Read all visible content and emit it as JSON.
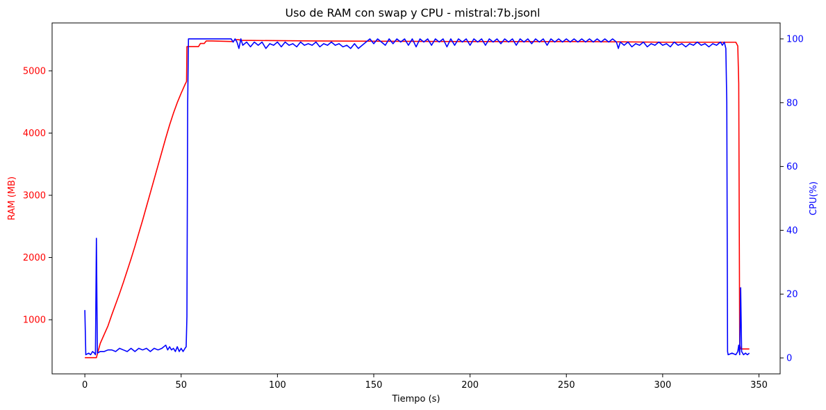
{
  "chart_data": {
    "type": "line",
    "title": "Uso de RAM con swap y CPU - mistral:7b.jsonl",
    "xlabel": "Tiempo (s)",
    "ylabel": "RAM (MB)",
    "y2label": "CPU(%)",
    "xlim": [
      -17,
      361
    ],
    "ylim": [
      130,
      5770
    ],
    "y2lim": [
      -5,
      105
    ],
    "x_ticks": [
      0,
      50,
      100,
      150,
      200,
      250,
      300,
      350
    ],
    "y_ticks": [
      1000,
      2000,
      3000,
      4000,
      5000
    ],
    "y2_ticks": [
      0,
      20,
      40,
      60,
      80,
      100
    ],
    "grid": false,
    "series": [
      {
        "name": "RAM (MB)",
        "axis": "left",
        "color": "#ff0000",
        "points": [
          [
            0,
            390
          ],
          [
            6,
            390
          ],
          [
            6.5,
            450
          ],
          [
            8,
            620
          ],
          [
            10,
            760
          ],
          [
            12,
            900
          ],
          [
            14,
            1080
          ],
          [
            16,
            1250
          ],
          [
            18,
            1420
          ],
          [
            20,
            1600
          ],
          [
            22,
            1790
          ],
          [
            24,
            1980
          ],
          [
            26,
            2180
          ],
          [
            28,
            2390
          ],
          [
            30,
            2600
          ],
          [
            32,
            2820
          ],
          [
            34,
            3040
          ],
          [
            36,
            3260
          ],
          [
            38,
            3480
          ],
          [
            40,
            3700
          ],
          [
            42,
            3920
          ],
          [
            44,
            4130
          ],
          [
            46,
            4320
          ],
          [
            48,
            4490
          ],
          [
            50,
            4640
          ],
          [
            52,
            4780
          ],
          [
            52.8,
            4830
          ],
          [
            53,
            5390
          ],
          [
            59,
            5390
          ],
          [
            60,
            5440
          ],
          [
            62,
            5440
          ],
          [
            63,
            5480
          ],
          [
            66,
            5480
          ],
          [
            77,
            5470
          ],
          [
            78,
            5500
          ],
          [
            80,
            5500
          ],
          [
            81,
            5490
          ],
          [
            120,
            5480
          ],
          [
            200,
            5470
          ],
          [
            260,
            5470
          ],
          [
            300,
            5460
          ],
          [
            338,
            5460
          ],
          [
            339,
            5400
          ],
          [
            339.5,
            4800
          ],
          [
            340,
            600
          ],
          [
            340.5,
            530
          ],
          [
            345,
            530
          ]
        ]
      },
      {
        "name": "CPU(%)",
        "axis": "right",
        "color": "#0000ff",
        "points": [
          [
            0,
            15
          ],
          [
            0.5,
            1
          ],
          [
            2,
            1.5
          ],
          [
            3,
            1
          ],
          [
            4,
            2
          ],
          [
            5,
            1.5
          ],
          [
            5.5,
            1
          ],
          [
            6,
            37.5
          ],
          [
            6.5,
            1.5
          ],
          [
            8,
            2
          ],
          [
            10,
            2
          ],
          [
            12,
            2.5
          ],
          [
            14,
            2.5
          ],
          [
            16,
            2
          ],
          [
            18,
            3
          ],
          [
            20,
            2.5
          ],
          [
            22,
            2
          ],
          [
            24,
            3
          ],
          [
            26,
            2
          ],
          [
            28,
            3
          ],
          [
            30,
            2.5
          ],
          [
            32,
            3
          ],
          [
            34,
            2
          ],
          [
            36,
            3
          ],
          [
            38,
            2.5
          ],
          [
            40,
            3
          ],
          [
            42,
            4
          ],
          [
            43,
            2.5
          ],
          [
            44,
            3.5
          ],
          [
            45,
            2.5
          ],
          [
            46,
            3
          ],
          [
            47,
            2
          ],
          [
            48,
            3.5
          ],
          [
            49,
            2
          ],
          [
            50,
            3
          ],
          [
            51,
            2
          ],
          [
            52,
            3
          ],
          [
            52.6,
            3.5
          ],
          [
            53,
            13
          ],
          [
            53.4,
            80
          ],
          [
            53.8,
            100
          ],
          [
            65,
            100
          ],
          [
            76,
            100
          ],
          [
            77,
            99
          ],
          [
            78,
            100
          ],
          [
            79,
            99
          ],
          [
            80,
            97
          ],
          [
            81,
            100
          ],
          [
            82,
            98
          ],
          [
            84,
            99
          ],
          [
            86,
            97.5
          ],
          [
            88,
            99
          ],
          [
            90,
            98
          ],
          [
            92,
            99
          ],
          [
            94,
            97
          ],
          [
            96,
            98.5
          ],
          [
            98,
            98
          ],
          [
            100,
            99
          ],
          [
            102,
            97.5
          ],
          [
            104,
            99
          ],
          [
            106,
            98
          ],
          [
            108,
            98.5
          ],
          [
            110,
            97.5
          ],
          [
            112,
            99
          ],
          [
            114,
            98
          ],
          [
            116,
            98.5
          ],
          [
            118,
            98
          ],
          [
            120,
            99
          ],
          [
            122,
            97.5
          ],
          [
            124,
            98.5
          ],
          [
            126,
            98
          ],
          [
            128,
            99
          ],
          [
            130,
            98
          ],
          [
            132,
            98.5
          ],
          [
            134,
            97.5
          ],
          [
            136,
            98
          ],
          [
            138,
            97
          ],
          [
            140,
            98.5
          ],
          [
            142,
            97
          ],
          [
            144,
            98
          ],
          [
            146,
            99
          ],
          [
            148,
            100
          ],
          [
            150,
            98.5
          ],
          [
            152,
            100
          ],
          [
            154,
            99
          ],
          [
            156,
            98
          ],
          [
            158,
            100
          ],
          [
            160,
            98.5
          ],
          [
            162,
            100
          ],
          [
            164,
            99
          ],
          [
            166,
            100
          ],
          [
            168,
            98
          ],
          [
            170,
            100
          ],
          [
            172,
            97.5
          ],
          [
            174,
            100
          ],
          [
            176,
            99
          ],
          [
            178,
            100
          ],
          [
            180,
            98
          ],
          [
            182,
            100
          ],
          [
            184,
            99
          ],
          [
            186,
            100
          ],
          [
            188,
            97.5
          ],
          [
            190,
            100
          ],
          [
            192,
            98
          ],
          [
            194,
            100
          ],
          [
            196,
            99
          ],
          [
            198,
            100
          ],
          [
            200,
            98
          ],
          [
            202,
            100
          ],
          [
            204,
            99
          ],
          [
            206,
            100
          ],
          [
            208,
            98
          ],
          [
            210,
            100
          ],
          [
            212,
            99
          ],
          [
            214,
            100
          ],
          [
            216,
            98.5
          ],
          [
            218,
            100
          ],
          [
            220,
            99
          ],
          [
            222,
            100
          ],
          [
            224,
            98
          ],
          [
            226,
            100
          ],
          [
            228,
            99
          ],
          [
            230,
            100
          ],
          [
            232,
            98.5
          ],
          [
            234,
            100
          ],
          [
            236,
            99
          ],
          [
            238,
            100
          ],
          [
            240,
            98
          ],
          [
            242,
            100
          ],
          [
            244,
            99
          ],
          [
            246,
            100
          ],
          [
            248,
            99
          ],
          [
            250,
            100
          ],
          [
            252,
            99
          ],
          [
            254,
            100
          ],
          [
            256,
            99
          ],
          [
            258,
            100
          ],
          [
            260,
            99
          ],
          [
            262,
            100
          ],
          [
            264,
            99
          ],
          [
            266,
            100
          ],
          [
            268,
            99
          ],
          [
            270,
            100
          ],
          [
            272,
            99
          ],
          [
            274,
            100
          ],
          [
            276,
            99
          ],
          [
            277,
            97
          ],
          [
            278,
            99
          ],
          [
            280,
            98
          ],
          [
            282,
            99
          ],
          [
            284,
            97.5
          ],
          [
            286,
            98.5
          ],
          [
            288,
            98
          ],
          [
            290,
            99
          ],
          [
            292,
            97.5
          ],
          [
            294,
            98.5
          ],
          [
            296,
            98
          ],
          [
            298,
            99
          ],
          [
            300,
            98
          ],
          [
            302,
            98.5
          ],
          [
            304,
            97.5
          ],
          [
            306,
            99
          ],
          [
            308,
            98
          ],
          [
            310,
            98.5
          ],
          [
            312,
            97.5
          ],
          [
            314,
            98.5
          ],
          [
            316,
            98
          ],
          [
            318,
            99
          ],
          [
            320,
            98
          ],
          [
            322,
            98.5
          ],
          [
            324,
            97.5
          ],
          [
            326,
            98.5
          ],
          [
            328,
            98
          ],
          [
            330,
            99
          ],
          [
            331,
            98
          ],
          [
            332,
            99
          ],
          [
            332.8,
            97
          ],
          [
            333.3,
            80
          ],
          [
            333.7,
            2
          ],
          [
            334,
            1
          ],
          [
            336,
            1.5
          ],
          [
            338,
            1
          ],
          [
            339,
            2
          ],
          [
            339.5,
            4
          ],
          [
            340,
            1
          ],
          [
            340.5,
            22
          ],
          [
            341,
            2
          ],
          [
            342,
            1
          ],
          [
            343,
            1.5
          ],
          [
            344,
            1
          ],
          [
            345,
            1.5
          ]
        ]
      }
    ]
  }
}
